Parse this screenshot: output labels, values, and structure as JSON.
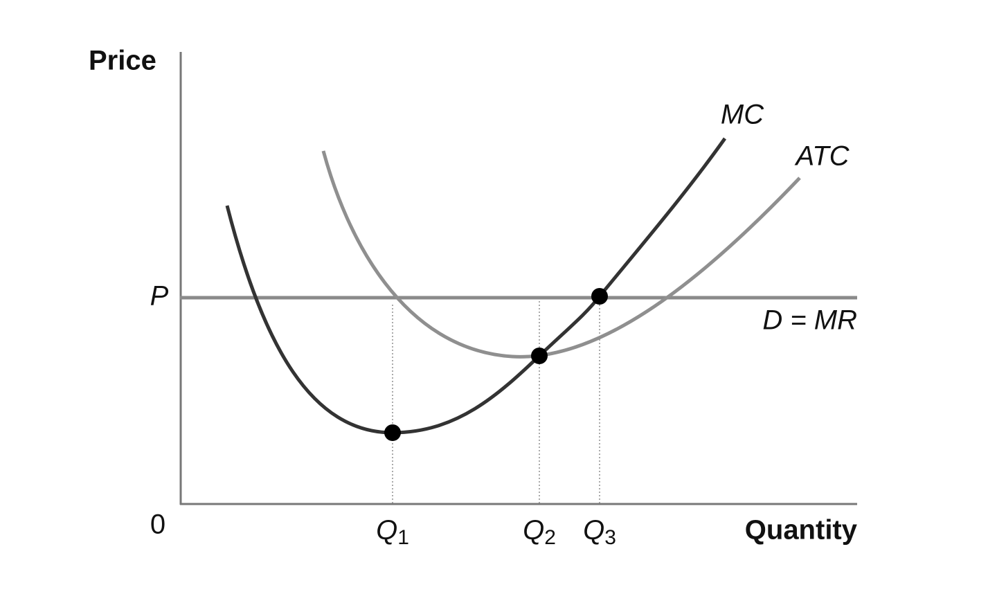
{
  "axes": {
    "y_label": "Price",
    "x_label": "Quantity",
    "origin": "0",
    "price_level": "P"
  },
  "quantities": [
    {
      "letter": "Q",
      "subscript": "1"
    },
    {
      "letter": "Q",
      "subscript": "2"
    },
    {
      "letter": "Q",
      "subscript": "3"
    }
  ],
  "curves": {
    "mc": "MC",
    "atc": "ATC",
    "demand": "D = MR"
  }
}
